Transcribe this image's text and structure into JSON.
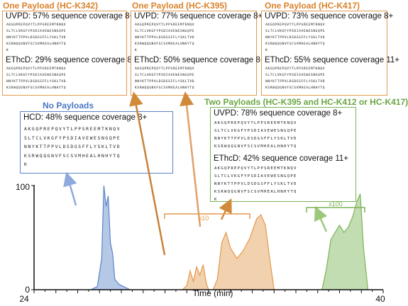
{
  "panels": {
    "k342": {
      "title": "One Payload (HC-K342)",
      "uvpd": "UVPD: 57% sequence coverage 8+",
      "ethcd": "EThcD: 29% sequence coverage 8+"
    },
    "k395": {
      "title": "One Payload (HC-K395)",
      "uvpd": "UVPD: 77% sequence coverage 8+",
      "ethcd": "EThcD: 50% sequence coverage 8+"
    },
    "k417": {
      "title": "One Payload (HC-K417)",
      "uvpd": "UVPD: 73% sequence coverage 8+",
      "ethcd": "EThcD: 55% sequence coverage 11+"
    },
    "none": {
      "title": "No Payloads",
      "hcd": "HCD: 48% sequence coverage 8+"
    },
    "two": {
      "title": "Two Payloads (HC-K395 and HC-K412 or HC-K417)",
      "uvpd": "UVPD: 78% sequence coverage 8+",
      "ethcd": "EThcD: 42% sequence coverage 11+"
    }
  },
  "sequence": {
    "line1": "AKGQPREPQVYTLPPSREEMTKNQV",
    "line2": "SLTCLVKGFYPSDIAVEWESNGQPE",
    "line3": "NNYKTTPPVLDSDGSFFLYSKLTVD",
    "line4": "KSRWQQGNVFSCSVMHEALHNHYTQ",
    "line5": "K"
  },
  "annotations": {
    "x10": "x10",
    "x100": "x100"
  },
  "colors": {
    "blue": "#5b84c8",
    "orange": "#e39a4d",
    "green": "#7bb356"
  },
  "chart_data": {
    "type": "area",
    "xlabel": "Time (min)",
    "xlim": [
      24,
      40
    ],
    "ylim": [
      0,
      100
    ],
    "xticks": [
      24,
      40
    ],
    "yticks": [
      0,
      100
    ],
    "series": [
      {
        "color": "#5b84c8",
        "x": [
          26.6,
          26.9,
          27.1,
          27.2,
          27.3,
          27.4,
          27.5,
          27.6,
          27.7,
          27.9,
          28.1,
          28.4
        ],
        "y": [
          0,
          3,
          30,
          100,
          80,
          90,
          45,
          35,
          10,
          5,
          3,
          0
        ]
      },
      {
        "color": "#e39a4d",
        "x": [
          30.8,
          31.0,
          31.15,
          31.3,
          31.45,
          31.6,
          31.75,
          31.9,
          32.0
        ],
        "y": [
          0,
          4,
          18,
          8,
          22,
          14,
          24,
          6,
          0
        ]
      },
      {
        "color": "#e39a4d",
        "x": [
          32.2,
          32.4,
          32.6,
          32.8,
          33.0,
          33.3,
          33.6,
          33.9,
          34.2,
          34.4,
          34.6,
          34.8,
          35.0
        ],
        "y": [
          0,
          10,
          45,
          55,
          40,
          30,
          38,
          50,
          68,
          72,
          62,
          30,
          0
        ]
      },
      {
        "color": "#7bb356",
        "x": [
          37.2,
          37.4,
          37.6,
          37.8,
          38.0,
          38.2,
          38.4,
          38.6,
          38.8,
          38.95,
          39.1,
          39.3
        ],
        "y": [
          0,
          20,
          48,
          55,
          62,
          55,
          60,
          70,
          85,
          92,
          40,
          0
        ]
      }
    ]
  }
}
